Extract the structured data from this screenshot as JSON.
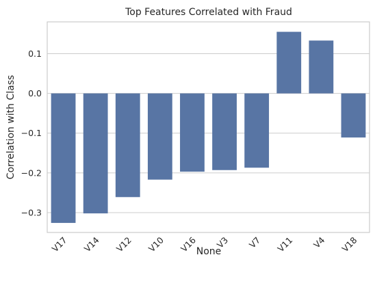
{
  "chart_data": {
    "type": "bar",
    "title": "Top Features Correlated with Fraud",
    "xlabel": "None",
    "ylabel": "Correlation with Class",
    "categories": [
      "V17",
      "V14",
      "V12",
      "V10",
      "V16",
      "V3",
      "V7",
      "V11",
      "V4",
      "V18"
    ],
    "values": [
      -0.326,
      -0.302,
      -0.261,
      -0.217,
      -0.197,
      -0.193,
      -0.187,
      0.155,
      0.133,
      -0.111
    ],
    "ylim": [
      -0.35,
      0.18
    ],
    "yticks": [
      -0.3,
      -0.2,
      -0.1,
      0.0,
      0.1
    ],
    "ytick_labels": [
      "−0.3",
      "−0.2",
      "−0.1",
      "0.0",
      "0.1"
    ],
    "grid": true,
    "bar_color": "#5875a4",
    "grid_color": "#cccccc"
  }
}
